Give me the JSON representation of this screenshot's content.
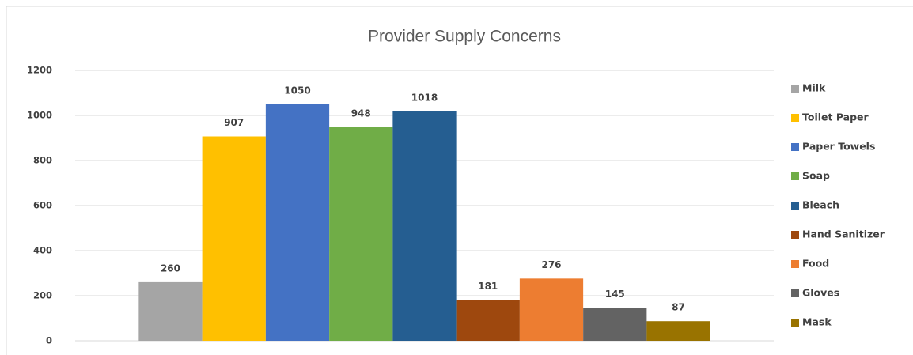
{
  "chart_data": {
    "type": "bar",
    "title": "Provider Supply Concerns",
    "categories": [
      null
    ],
    "series": [
      {
        "name": "Milk",
        "color": "#a5a5a5",
        "values": [
          260
        ]
      },
      {
        "name": "Toilet Paper",
        "color": "#ffc000",
        "values": [
          907
        ]
      },
      {
        "name": "Paper Towels",
        "color": "#4472c4",
        "values": [
          1050
        ]
      },
      {
        "name": "Soap",
        "color": "#70ad47",
        "values": [
          948
        ]
      },
      {
        "name": "Bleach",
        "color": "#255e91",
        "values": [
          1018
        ]
      },
      {
        "name": "Hand Sanitizer",
        "color": "#9e480e",
        "values": [
          181
        ]
      },
      {
        "name": "Food",
        "color": "#ed7d31",
        "values": [
          276
        ]
      },
      {
        "name": "Gloves",
        "color": "#636363",
        "values": [
          145
        ]
      },
      {
        "name": "Mask",
        "color": "#997300",
        "values": [
          87
        ]
      }
    ],
    "ylim": [
      0,
      1200
    ],
    "yticks": [
      0,
      200,
      400,
      600,
      800,
      1000,
      1200
    ],
    "grid": true,
    "legend": "right",
    "data_labels": true
  }
}
